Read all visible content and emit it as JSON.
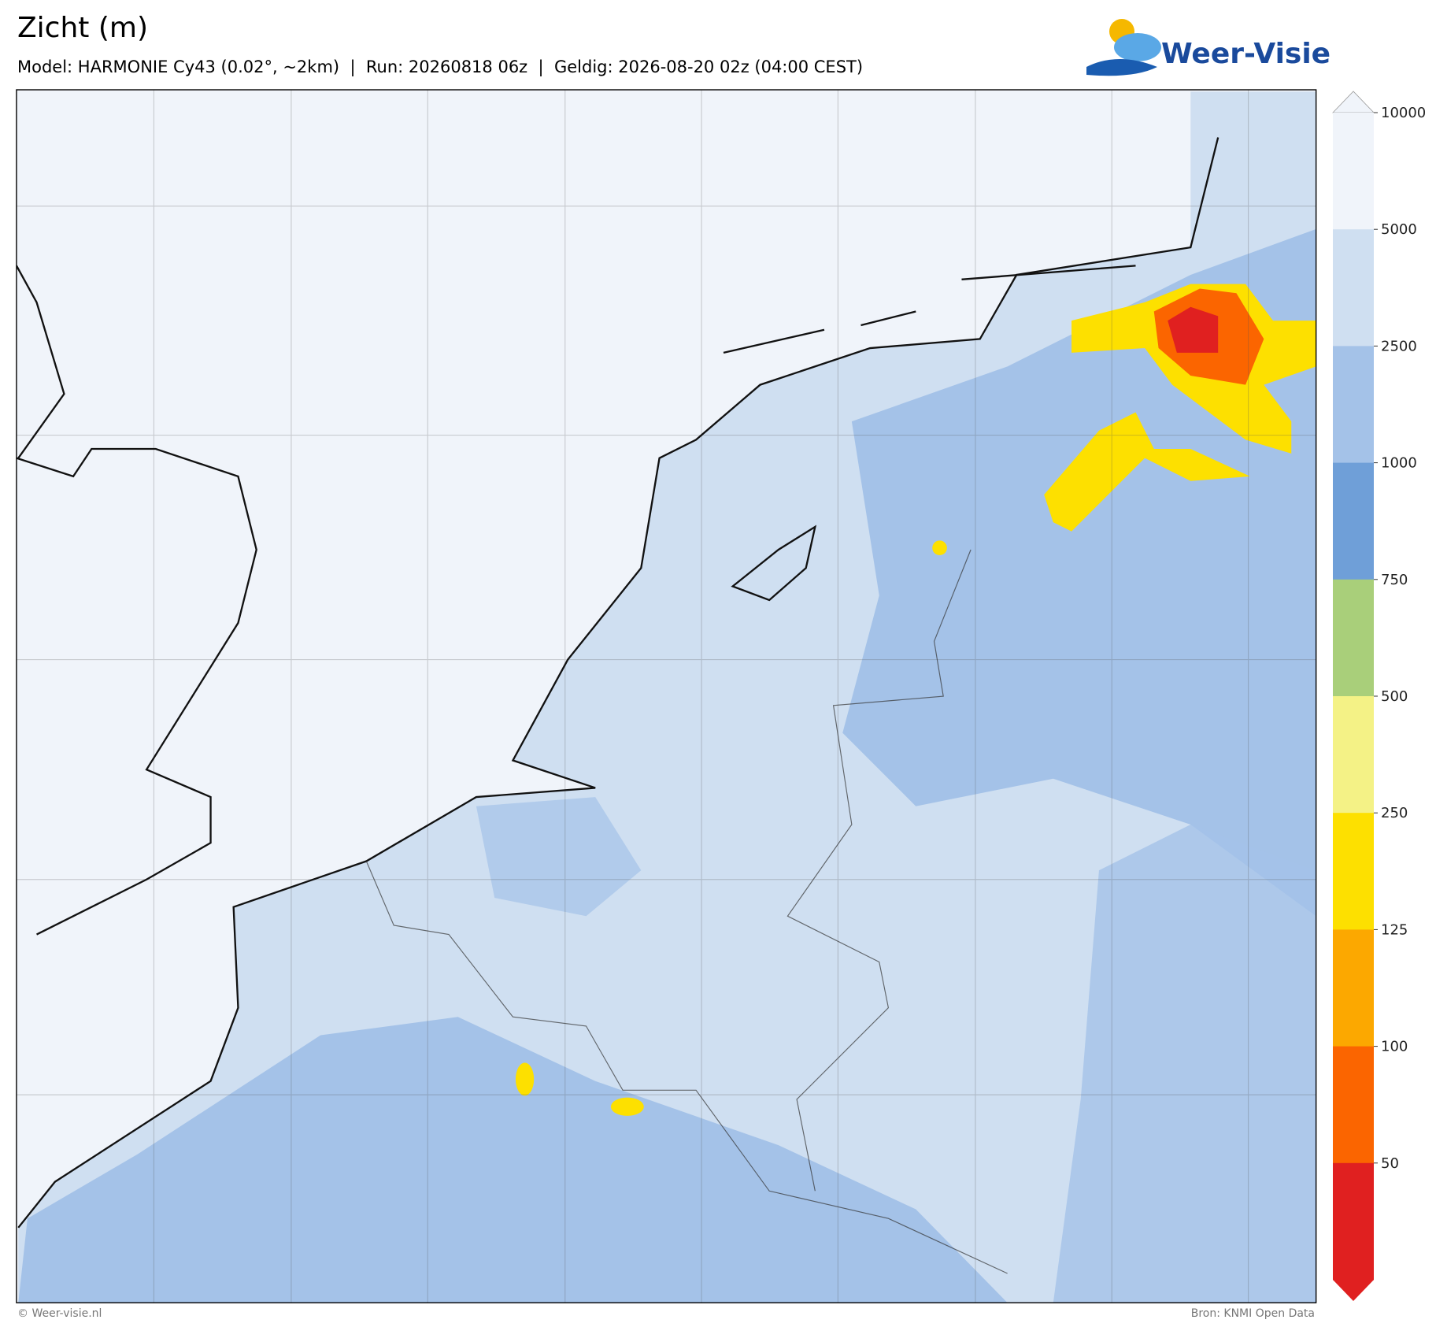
{
  "header": {
    "title": "Zicht (m)",
    "subtitle": "Model: HARMONIE Cy43 (0.02°, ~2km)  |  Run: 20260818 06z  |  Geldig: 2026-08-20 02z (04:00 CEST)",
    "logo": "Weer-Visie"
  },
  "colorbar": {
    "ticks": [
      10000,
      5000,
      2500,
      1000,
      750,
      500,
      250,
      125,
      100,
      50
    ],
    "colors": [
      "#f0f4fa",
      "#cfdff1",
      "#a4c2e8",
      "#6f9fd8",
      "#a9cf7a",
      "#f4f286",
      "#fde000",
      "#fca800",
      "#fb6500",
      "#e02020"
    ]
  },
  "footer": {
    "left": "© Weer-visie.nl",
    "right": "Bron: KNMI Open Data"
  }
}
